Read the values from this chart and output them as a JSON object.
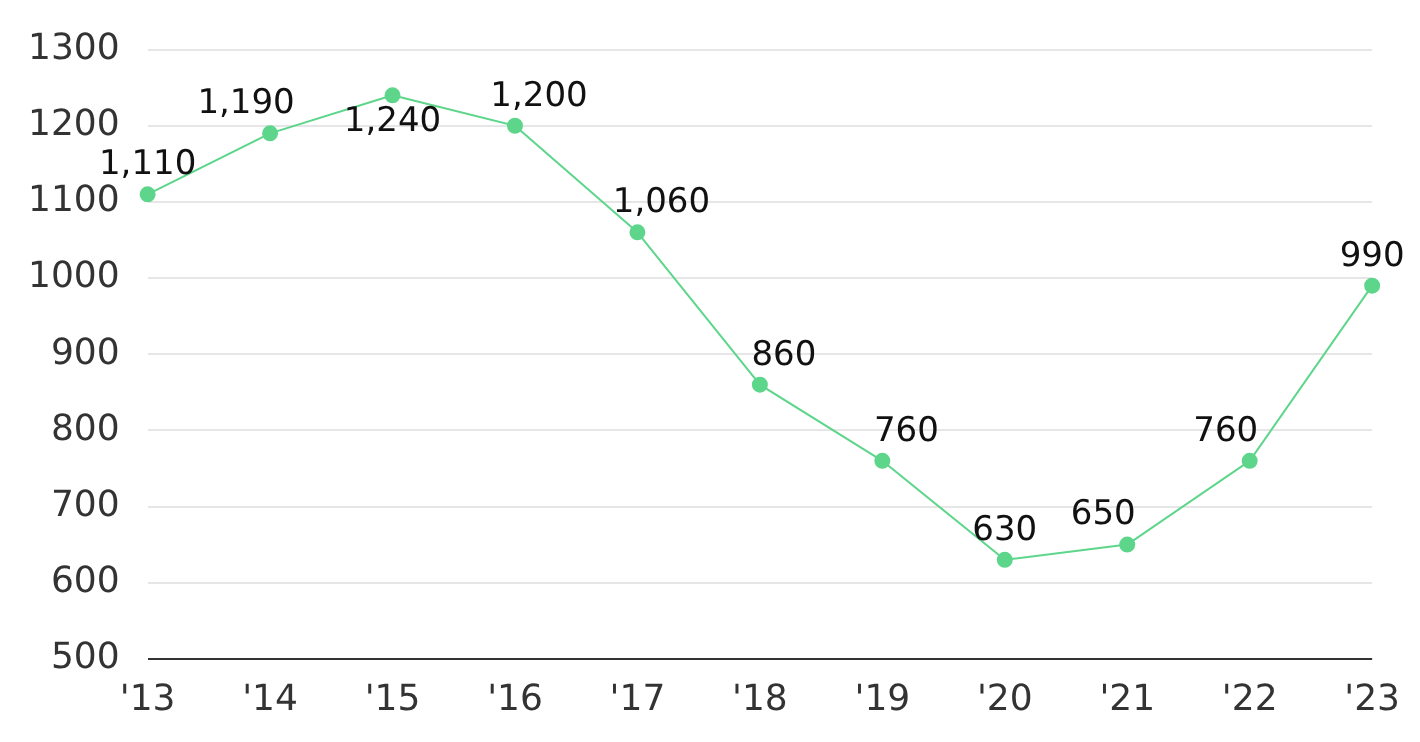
{
  "chart_data": {
    "type": "line",
    "categories": [
      "'13",
      "'14",
      "'15",
      "'16",
      "'17",
      "'18",
      "'19",
      "'20",
      "'21",
      "'22",
      "'23"
    ],
    "series": [
      {
        "color": "#5dd68b",
        "values": [
          1110,
          1190,
          1240,
          1200,
          1060,
          860,
          760,
          630,
          650,
          760,
          990
        ],
        "value_labels": [
          "1,110",
          "1,190",
          "1,240",
          "1,200",
          "1,060",
          "860",
          "760",
          "630",
          "650",
          "760",
          "990"
        ]
      }
    ],
    "ylim": [
      500,
      1300
    ],
    "yticks": [
      500,
      600,
      700,
      800,
      900,
      1000,
      1100,
      1200,
      1300
    ],
    "grid": "y",
    "legend": false,
    "marker": "circle",
    "line_style": "solid"
  }
}
